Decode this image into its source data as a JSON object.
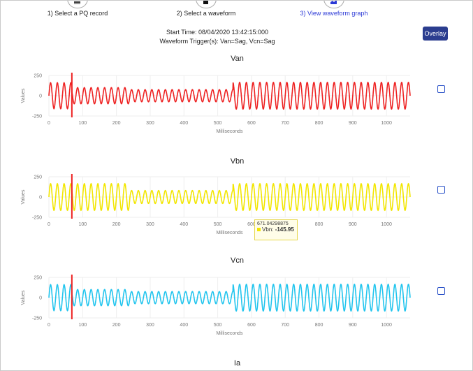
{
  "steps": [
    {
      "label": "1) Select a PQ record",
      "icon": "list-icon"
    },
    {
      "label": "2) Select a waveform",
      "icon": "stop-icon"
    },
    {
      "label": "3) View waveform graph",
      "icon": "chart-icon"
    }
  ],
  "info": {
    "start_time": "Start Time: 08/04/2020 13:42:15:000",
    "triggers": "Waveform Trigger(s): Van=Sag, Vcn=Sag"
  },
  "overlay_label": "Overlay",
  "bottom_title": "Ia",
  "colors": {
    "van": "#ee2222",
    "vbn": "#f2e600",
    "vcn": "#22c5ee",
    "marker": "#ee2222",
    "accent": "#2b3d8f"
  },
  "tooltip": {
    "x_value": "671.04298875",
    "series": "Vbn",
    "y_value": "-145.95"
  },
  "chart_data": [
    {
      "type": "line",
      "title": "Van",
      "xlabel": "Milliseconds",
      "ylabel": "Values",
      "xlim": [
        0,
        1070
      ],
      "ylim": [
        -250,
        250
      ],
      "xticks": [
        "0",
        "100",
        "200",
        "300",
        "400",
        "500",
        "600",
        "700",
        "800",
        "900",
        "1000"
      ],
      "yticks": [
        "250",
        "0",
        "-250"
      ],
      "series": [
        {
          "name": "Van",
          "frequency_hz": 50,
          "marker_x": 68,
          "envelope": [
            {
              "from": 0,
              "to": 68,
              "amplitude": 160
            },
            {
              "from": 68,
              "to": 240,
              "amplitude": 100
            },
            {
              "from": 240,
              "to": 545,
              "amplitude": 75
            },
            {
              "from": 545,
              "to": 1070,
              "amplitude": 165
            }
          ]
        }
      ]
    },
    {
      "type": "line",
      "title": "Vbn",
      "xlabel": "Milliseconds",
      "ylabel": "Values",
      "xlim": [
        0,
        1070
      ],
      "ylim": [
        -250,
        250
      ],
      "xticks": [
        "0",
        "100",
        "200",
        "300",
        "400",
        "500",
        "600",
        "700",
        "800",
        "900",
        "1000"
      ],
      "yticks": [
        "250",
        "0",
        "-250"
      ],
      "series": [
        {
          "name": "Vbn",
          "frequency_hz": 50,
          "marker_x": 68,
          "envelope": [
            {
              "from": 0,
              "to": 240,
              "amplitude": 165
            },
            {
              "from": 240,
              "to": 545,
              "amplitude": 80
            },
            {
              "from": 545,
              "to": 1070,
              "amplitude": 165
            }
          ]
        }
      ]
    },
    {
      "type": "line",
      "title": "Vcn",
      "xlabel": "Milliseconds",
      "ylabel": "Values",
      "xlim": [
        0,
        1070
      ],
      "ylim": [
        -250,
        250
      ],
      "xticks": [
        "0",
        "100",
        "200",
        "300",
        "400",
        "500",
        "600",
        "700",
        "800",
        "900",
        "1000"
      ],
      "yticks": [
        "250",
        "0",
        "-250"
      ],
      "series": [
        {
          "name": "Vcn",
          "frequency_hz": 50,
          "marker_x": 68,
          "envelope": [
            {
              "from": 0,
              "to": 68,
              "amplitude": 160
            },
            {
              "from": 68,
              "to": 240,
              "amplitude": 100
            },
            {
              "from": 240,
              "to": 545,
              "amplitude": 75
            },
            {
              "from": 545,
              "to": 1070,
              "amplitude": 165
            }
          ]
        }
      ]
    }
  ]
}
